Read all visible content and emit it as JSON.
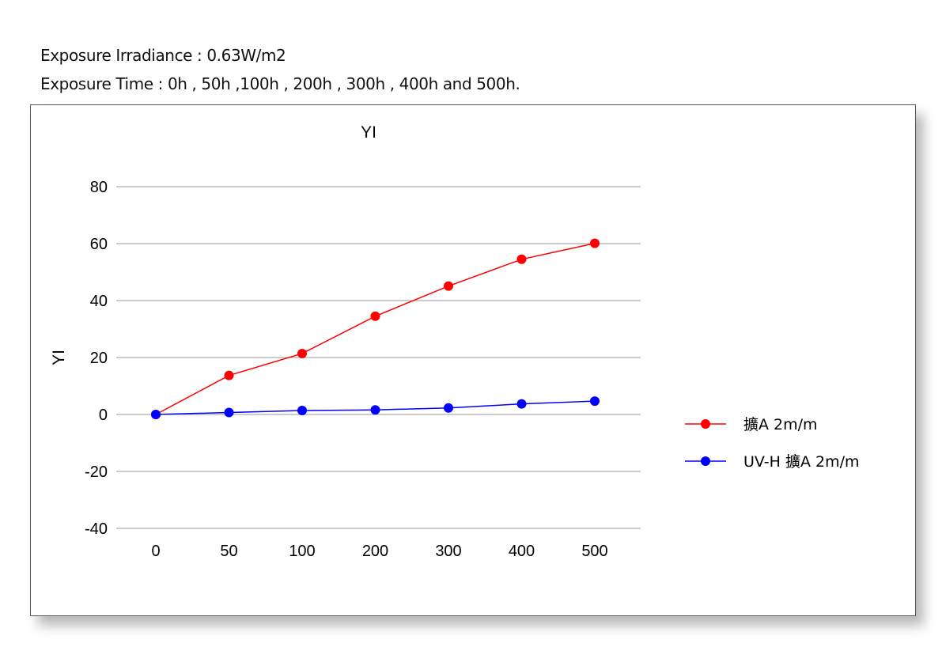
{
  "header": {
    "line1": "Exposure Irradiance : 0.63W/m2",
    "line2": "Exposure Time : 0h , 50h ,100h , 200h , 300h , 400h  and 500h."
  },
  "chart_data": {
    "type": "line",
    "title": "YI",
    "xlabel": "",
    "ylabel": "YI",
    "categories": [
      "0",
      "50",
      "100",
      "200",
      "300",
      "400",
      "500"
    ],
    "ylim": [
      -40,
      80
    ],
    "yticks": [
      80,
      60,
      40,
      20,
      0,
      -20,
      -40
    ],
    "grid": true,
    "legend_position": "right",
    "series": [
      {
        "name": "擴A  2m/m",
        "color": "#ff0000",
        "values": [
          0,
          13.7,
          21.4,
          34.5,
          45.1,
          54.5,
          60.1
        ]
      },
      {
        "name": "UV-H 擴A  2m/m",
        "color": "#0000ff",
        "values": [
          0,
          0.7,
          1.4,
          1.6,
          2.3,
          3.7,
          4.7
        ]
      }
    ]
  }
}
